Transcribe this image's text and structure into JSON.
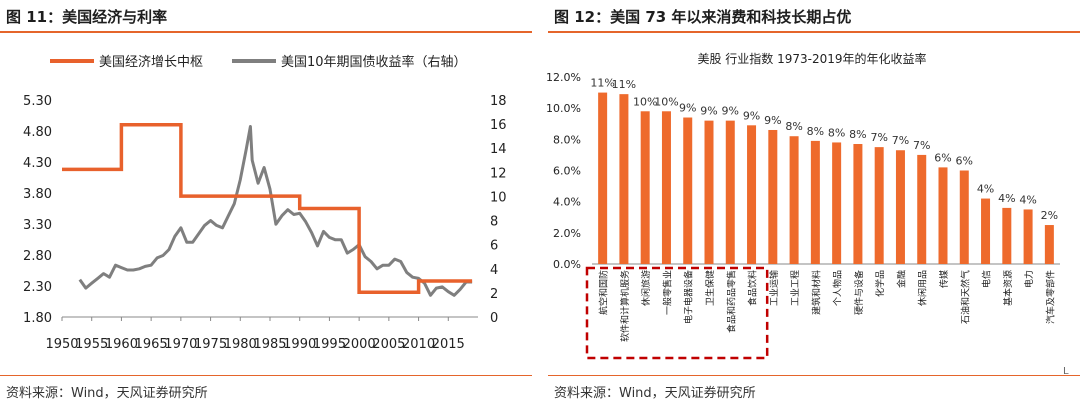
{
  "left": {
    "title": "图 11：美国经济与利率",
    "source": "资料来源：Wind，天风证券研究所",
    "chart_data": {
      "type": "line",
      "legend_position": "top",
      "grid": false,
      "series": [
        {
          "name": "美国经济增长中枢",
          "axis": "left",
          "color": "#e8612c",
          "points": [
            [
              1950,
              4.18
            ],
            [
              1960,
              4.18
            ],
            [
              1960,
              4.9
            ],
            [
              1970,
              4.9
            ],
            [
              1970,
              3.75
            ],
            [
              1990,
              3.75
            ],
            [
              1990,
              3.55
            ],
            [
              2000,
              3.55
            ],
            [
              2000,
              2.2
            ],
            [
              2010,
              2.2
            ],
            [
              2010,
              2.38
            ],
            [
              2019,
              2.38
            ]
          ]
        },
        {
          "name": "美国10年期国债收益率（右轴）",
          "axis": "right",
          "color": "#7f7f7f",
          "points": [
            [
              1953,
              3.1
            ],
            [
              1954,
              2.4
            ],
            [
              1955,
              2.8
            ],
            [
              1956,
              3.2
            ],
            [
              1957,
              3.6
            ],
            [
              1958,
              3.3
            ],
            [
              1959,
              4.3
            ],
            [
              1960,
              4.1
            ],
            [
              1961,
              3.9
            ],
            [
              1962,
              3.9
            ],
            [
              1963,
              4.0
            ],
            [
              1964,
              4.2
            ],
            [
              1965,
              4.3
            ],
            [
              1966,
              4.9
            ],
            [
              1967,
              5.1
            ],
            [
              1968,
              5.6
            ],
            [
              1969,
              6.7
            ],
            [
              1970,
              7.4
            ],
            [
              1971,
              6.2
            ],
            [
              1972,
              6.2
            ],
            [
              1973,
              6.9
            ],
            [
              1974,
              7.6
            ],
            [
              1975,
              8.0
            ],
            [
              1976,
              7.6
            ],
            [
              1977,
              7.4
            ],
            [
              1978,
              8.4
            ],
            [
              1979,
              9.4
            ],
            [
              1980,
              11.4
            ],
            [
              1981,
              13.9
            ],
            [
              1981.7,
              15.8
            ],
            [
              1982,
              13.0
            ],
            [
              1983,
              11.1
            ],
            [
              1984,
              12.4
            ],
            [
              1985,
              10.6
            ],
            [
              1986,
              7.7
            ],
            [
              1987,
              8.4
            ],
            [
              1988,
              8.9
            ],
            [
              1989,
              8.5
            ],
            [
              1990,
              8.6
            ],
            [
              1991,
              7.9
            ],
            [
              1992,
              7.0
            ],
            [
              1993,
              5.9
            ],
            [
              1994,
              7.1
            ],
            [
              1995,
              6.6
            ],
            [
              1996,
              6.4
            ],
            [
              1997,
              6.4
            ],
            [
              1998,
              5.3
            ],
            [
              1999,
              5.6
            ],
            [
              2000,
              6.0
            ],
            [
              2001,
              5.0
            ],
            [
              2002,
              4.6
            ],
            [
              2003,
              4.0
            ],
            [
              2004,
              4.3
            ],
            [
              2005,
              4.3
            ],
            [
              2006,
              4.8
            ],
            [
              2007,
              4.6
            ],
            [
              2008,
              3.7
            ],
            [
              2009,
              3.3
            ],
            [
              2010,
              3.2
            ],
            [
              2011,
              2.8
            ],
            [
              2012,
              1.8
            ],
            [
              2013,
              2.4
            ],
            [
              2014,
              2.5
            ],
            [
              2015,
              2.1
            ],
            [
              2016,
              1.8
            ],
            [
              2017,
              2.3
            ],
            [
              2018,
              2.9
            ],
            [
              2019,
              2.9
            ]
          ]
        }
      ],
      "x_ticks": [
        1950,
        1955,
        1960,
        1965,
        1970,
        1975,
        1980,
        1985,
        1990,
        1995,
        2000,
        2005,
        2010,
        2015
      ],
      "x_range": [
        1950,
        2020
      ],
      "y_left_ticks": [
        "1.80",
        "2.30",
        "2.80",
        "3.30",
        "3.80",
        "4.30",
        "4.80",
        "5.30"
      ],
      "y_left_range": [
        1.8,
        5.3
      ],
      "y_right_ticks": [
        "0",
        "2",
        "4",
        "6",
        "8",
        "10",
        "12",
        "14",
        "16",
        "18"
      ],
      "y_right_range": [
        0,
        18
      ]
    }
  },
  "right": {
    "title": "图 12：美国 73 年以来消费和科技长期占优",
    "source": "资料来源：Wind，天风证券研究所",
    "chart_data": {
      "type": "bar",
      "title": "美股 行业指数 1973-2019年的年化收益率",
      "bar_color": "#ee6a2c",
      "categories": [
        "航空和国防",
        "软件和计算机服务",
        "休闲旅游",
        "一般零售业",
        "电子电器设备",
        "卫生保健",
        "食品和药品零售",
        "食品饮料",
        "工业运输",
        "工业工程",
        "建筑和材料",
        "个人物品",
        "硬件与设备",
        "化学品",
        "金融",
        "休闲用品",
        "传媒",
        "石油和天然气",
        "电信",
        "基本资源",
        "电力",
        "汽车及零部件"
      ],
      "values": [
        11.0,
        10.9,
        9.8,
        9.8,
        9.4,
        9.2,
        9.2,
        8.9,
        8.6,
        8.2,
        7.9,
        7.8,
        7.7,
        7.5,
        7.3,
        7.0,
        6.2,
        6.0,
        4.2,
        3.6,
        3.5,
        2.5
      ],
      "data_labels": [
        "11%",
        "11%",
        "10%",
        "10%",
        "9%",
        "9%",
        "9%",
        "9%",
        "9%",
        "8%",
        "8%",
        "8%",
        "8%",
        "7%",
        "7%",
        "7%",
        "6%",
        "6%",
        "4%",
        "4%",
        "4%",
        "2%"
      ],
      "y_ticks": [
        "0.0%",
        "2.0%",
        "4.0%",
        "6.0%",
        "8.0%",
        "10.0%",
        "12.0%"
      ],
      "ylim": [
        0,
        12
      ],
      "highlight": {
        "from_index": 0,
        "to_index": 7,
        "style": "dashed",
        "color": "#c00000"
      },
      "corner_mark": "L"
    }
  }
}
